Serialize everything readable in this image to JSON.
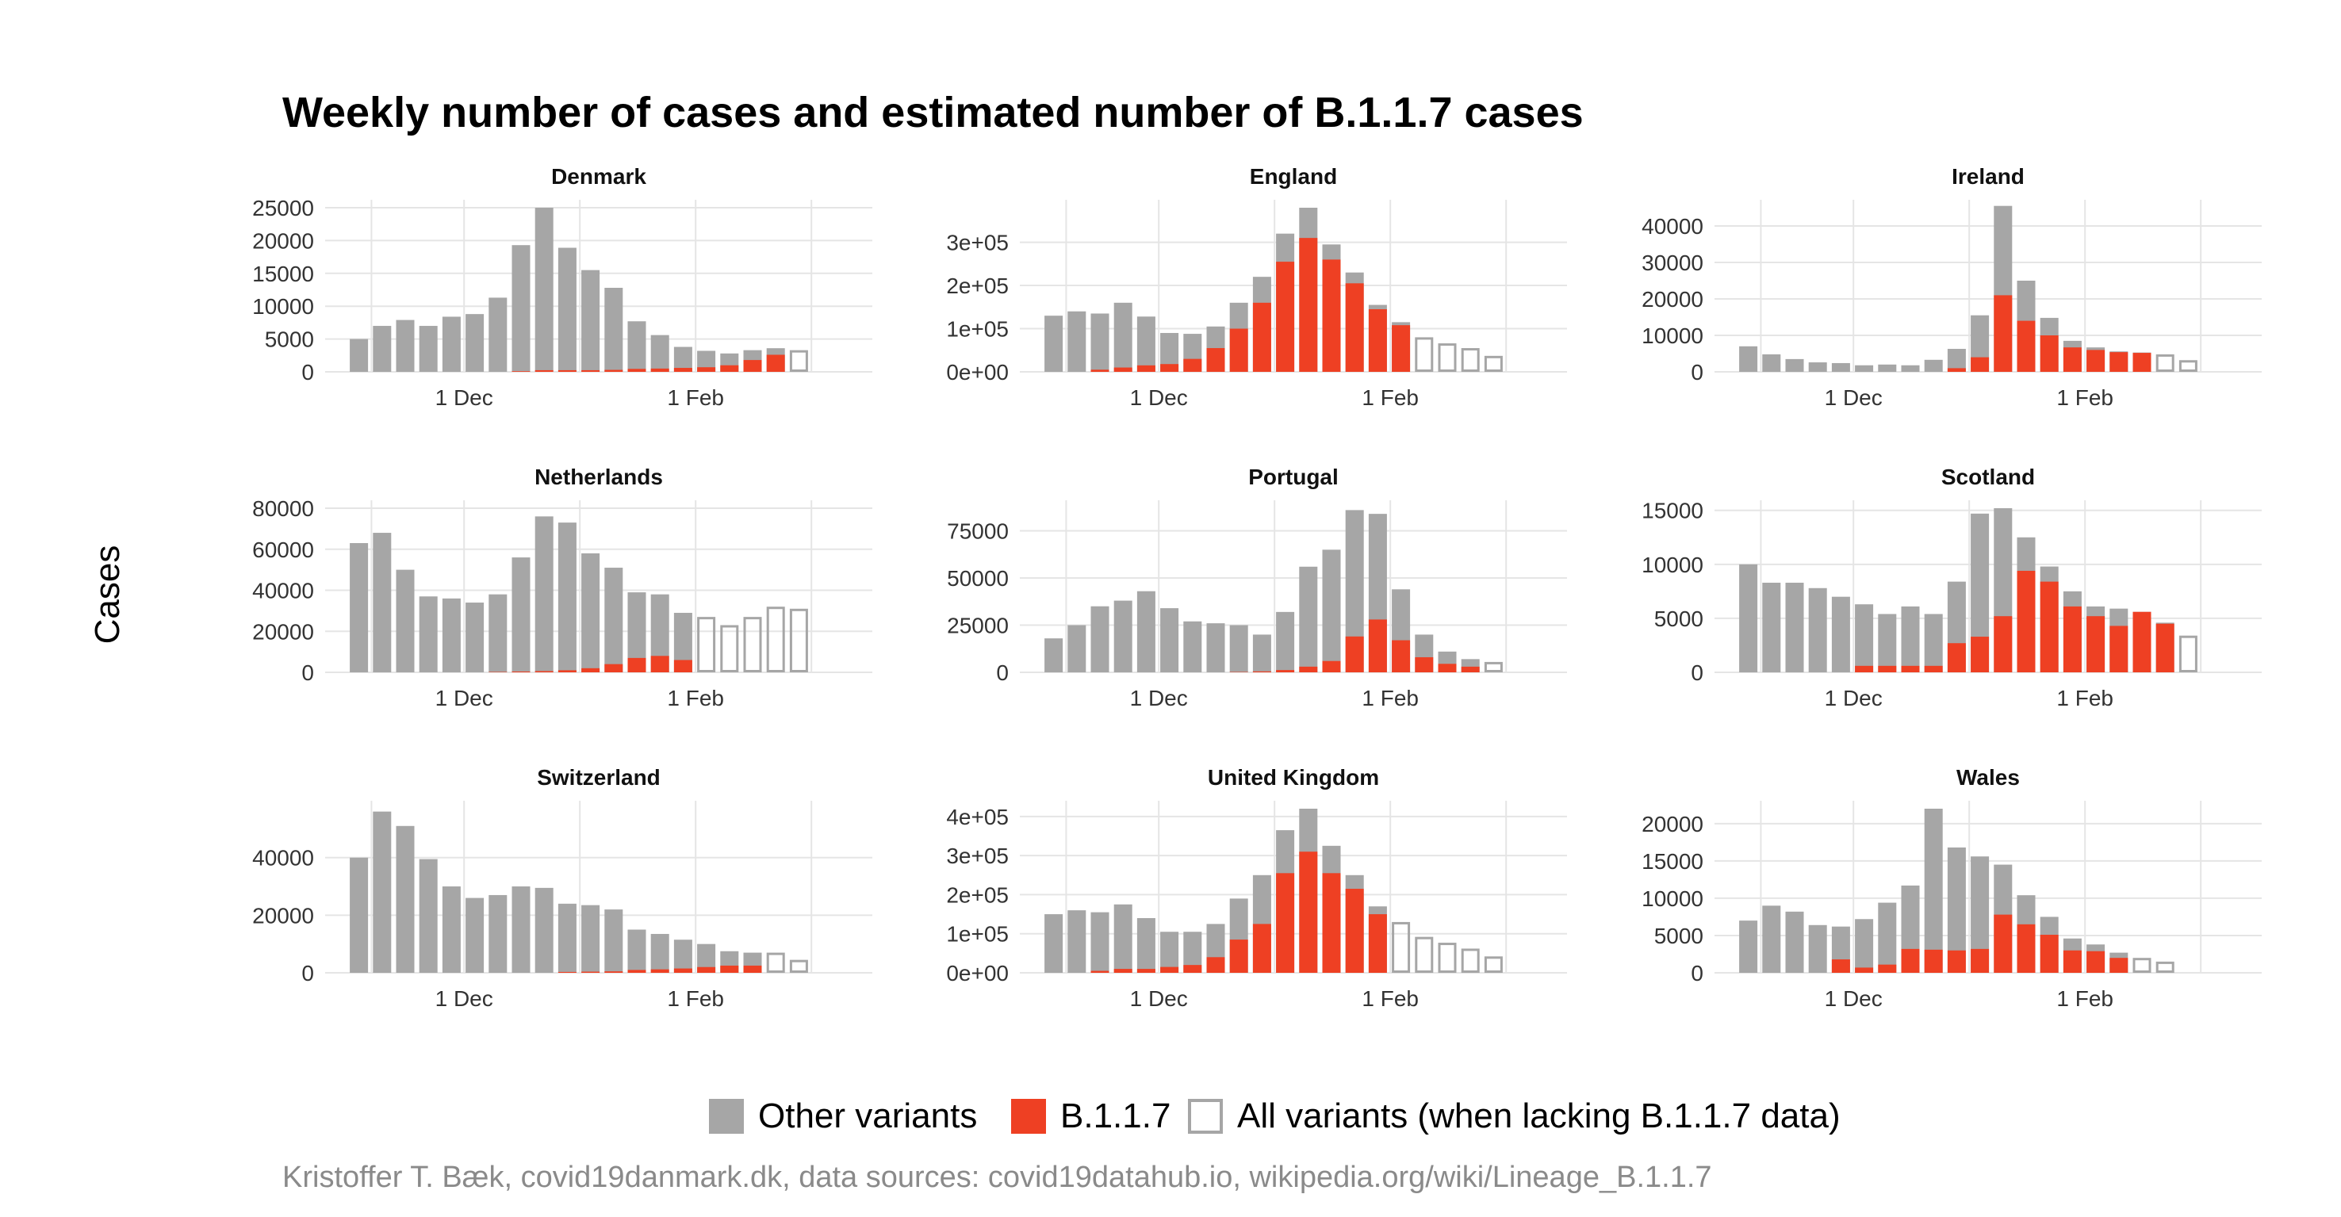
{
  "chart_data": {
    "type": "bar",
    "title": "Weekly number of cases and estimated number of B.1.1.7 cases",
    "ylabel": "Cases",
    "caption": "Kristoffer T. Bæk, covid19danmark.dk, data sources: covid19datahub.io, wikipedia.org/wiki/Lineage_B.1.1.7",
    "legend": {
      "position": "bottom",
      "entries": [
        {
          "label": "Other variants",
          "style": "filled",
          "color": "#a6a6a6"
        },
        {
          "label": "B.1.1.7",
          "style": "filled",
          "color": "#ee4023"
        },
        {
          "label": "All variants (when lacking B.1.1.7 data)",
          "style": "outline",
          "color": "#a6a6a6"
        }
      ]
    },
    "x_tick_labels": [
      "1 Dec",
      "1 Feb"
    ],
    "x_tick_weeks": [
      5.5,
      15.5
    ],
    "n_weeks": 22,
    "colors": {
      "other": "#a6a6a6",
      "b117": "#ee4023",
      "outline": "#a6a6a6",
      "grid": "#e5e5e5"
    },
    "panels": [
      {
        "name": "Denmark",
        "ylim": [
          0,
          25000
        ],
        "yticks": [
          0,
          5000,
          10000,
          15000,
          20000,
          25000
        ],
        "ytick_labels": [
          "0",
          "5000",
          "10000",
          "15000",
          "20000",
          "25000"
        ],
        "total": [
          5000,
          7000,
          7900,
          7000,
          8400,
          8800,
          11300,
          19300,
          25000,
          18900,
          15500,
          12800,
          7700,
          5600,
          3800,
          3200,
          2800,
          3300,
          3600,
          3300
        ],
        "b117": [
          0,
          0,
          0,
          0,
          0,
          0,
          0,
          100,
          250,
          250,
          250,
          300,
          450,
          500,
          600,
          700,
          1000,
          1800,
          2600,
          null
        ]
      },
      {
        "name": "England",
        "ylim": [
          0,
          380000
        ],
        "yticks": [
          0,
          100000,
          200000,
          300000
        ],
        "ytick_labels": [
          "0e+00",
          "1e+05",
          "2e+05",
          "3e+05"
        ],
        "total": [
          130000,
          140000,
          135000,
          160000,
          128000,
          90000,
          88000,
          105000,
          160000,
          220000,
          320000,
          380000,
          295000,
          230000,
          155000,
          115000,
          80000,
          66000,
          55000,
          37000
        ],
        "b117": [
          0,
          0,
          5000,
          10000,
          15000,
          18000,
          30000,
          55000,
          100000,
          160000,
          255000,
          310000,
          260000,
          205000,
          145000,
          108000,
          null,
          null,
          null,
          null
        ]
      },
      {
        "name": "Ireland",
        "ylim": [
          0,
          45000
        ],
        "yticks": [
          0,
          10000,
          20000,
          30000,
          40000
        ],
        "ytick_labels": [
          "0",
          "10000",
          "20000",
          "30000",
          "40000"
        ],
        "total": [
          7000,
          4800,
          3500,
          2600,
          2400,
          1800,
          2000,
          1800,
          3300,
          6300,
          15500,
          45500,
          25000,
          14800,
          8500,
          6700,
          5600,
          5300,
          4800,
          3200
        ],
        "b117": [
          0,
          0,
          0,
          0,
          0,
          0,
          0,
          0,
          0,
          1000,
          4000,
          21000,
          14000,
          10000,
          6700,
          6000,
          5400,
          5200,
          null,
          null
        ]
      },
      {
        "name": "Netherlands",
        "ylim": [
          0,
          80000
        ],
        "yticks": [
          0,
          20000,
          40000,
          60000,
          80000
        ],
        "ytick_labels": [
          "0",
          "20000",
          "40000",
          "60000",
          "80000"
        ],
        "total": [
          63000,
          68000,
          50000,
          37000,
          36000,
          34000,
          38000,
          56000,
          76000,
          73000,
          58000,
          51000,
          39000,
          38000,
          29000,
          27000,
          23000,
          27000,
          32000,
          31000
        ],
        "b117": [
          0,
          0,
          0,
          0,
          0,
          0,
          200,
          400,
          600,
          1000,
          2000,
          4000,
          7000,
          8000,
          6000,
          null,
          null,
          null,
          null,
          null
        ]
      },
      {
        "name": "Portugal",
        "ylim": [
          0,
          87000
        ],
        "yticks": [
          0,
          25000,
          50000,
          75000
        ],
        "ytick_labels": [
          "0",
          "25000",
          "50000",
          "75000"
        ],
        "total": [
          18000,
          25000,
          35000,
          38000,
          43000,
          34000,
          27000,
          26000,
          25000,
          20000,
          32000,
          56000,
          65000,
          86000,
          84000,
          44000,
          20000,
          11000,
          7000,
          5500
        ],
        "b117": [
          0,
          0,
          0,
          0,
          0,
          0,
          0,
          0,
          200,
          500,
          1200,
          3000,
          6000,
          19000,
          28000,
          17000,
          8000,
          4500,
          3000,
          null
        ]
      },
      {
        "name": "Scotland",
        "ylim": [
          0,
          15200
        ],
        "yticks": [
          0,
          5000,
          10000,
          15000
        ],
        "ytick_labels": [
          "0",
          "5000",
          "10000",
          "15000"
        ],
        "total": [
          10000,
          8300,
          8300,
          7800,
          7000,
          6300,
          5400,
          6100,
          5400,
          8400,
          14700,
          15200,
          12500,
          9800,
          7500,
          6100,
          5900,
          5600,
          4600,
          3400
        ],
        "b117": [
          0,
          0,
          0,
          0,
          0,
          600,
          600,
          600,
          600,
          2700,
          3300,
          5200,
          9400,
          8400,
          6100,
          5200,
          4300,
          5600,
          4500,
          null
        ]
      },
      {
        "name": "Switzerland",
        "ylim": [
          0,
          57000
        ],
        "yticks": [
          0,
          20000,
          40000
        ],
        "ytick_labels": [
          "0",
          "20000",
          "40000"
        ],
        "total": [
          40000,
          56000,
          51000,
          39500,
          30000,
          26000,
          27000,
          30000,
          29500,
          24000,
          23500,
          22000,
          15000,
          13500,
          11500,
          10000,
          7500,
          7000,
          7000,
          4500
        ],
        "b117": [
          0,
          0,
          0,
          0,
          0,
          0,
          0,
          0,
          0,
          300,
          400,
          500,
          1000,
          1200,
          1500,
          2000,
          2500,
          2500,
          null,
          null
        ]
      },
      {
        "name": "United Kingdom",
        "ylim": [
          0,
          420000
        ],
        "yticks": [
          0,
          100000,
          200000,
          300000,
          400000
        ],
        "ytick_labels": [
          "0e+00",
          "1e+05",
          "2e+05",
          "3e+05",
          "4e+05"
        ],
        "total": [
          150000,
          160000,
          155000,
          175000,
          140000,
          105000,
          105000,
          125000,
          190000,
          250000,
          365000,
          420000,
          325000,
          250000,
          170000,
          130000,
          92000,
          77000,
          62000,
          42000
        ],
        "b117": [
          0,
          0,
          5000,
          10000,
          10000,
          15000,
          20000,
          40000,
          85000,
          125000,
          255000,
          310000,
          255000,
          215000,
          150000,
          null,
          null,
          null,
          null,
          null
        ]
      },
      {
        "name": "Wales",
        "ylim": [
          0,
          22000
        ],
        "yticks": [
          0,
          5000,
          10000,
          15000,
          20000
        ],
        "ytick_labels": [
          "0",
          "5000",
          "10000",
          "15000",
          "20000"
        ],
        "total": [
          7000,
          9000,
          8200,
          6400,
          6200,
          7200,
          9400,
          11700,
          22000,
          16800,
          15600,
          14500,
          10400,
          7500,
          4600,
          3800,
          2700,
          2000,
          1500
        ],
        "b117": [
          0,
          0,
          0,
          0,
          1800,
          700,
          1100,
          3200,
          3100,
          3000,
          3200,
          7800,
          6500,
          5100,
          3000,
          2900,
          2000,
          null,
          null
        ]
      }
    ]
  }
}
